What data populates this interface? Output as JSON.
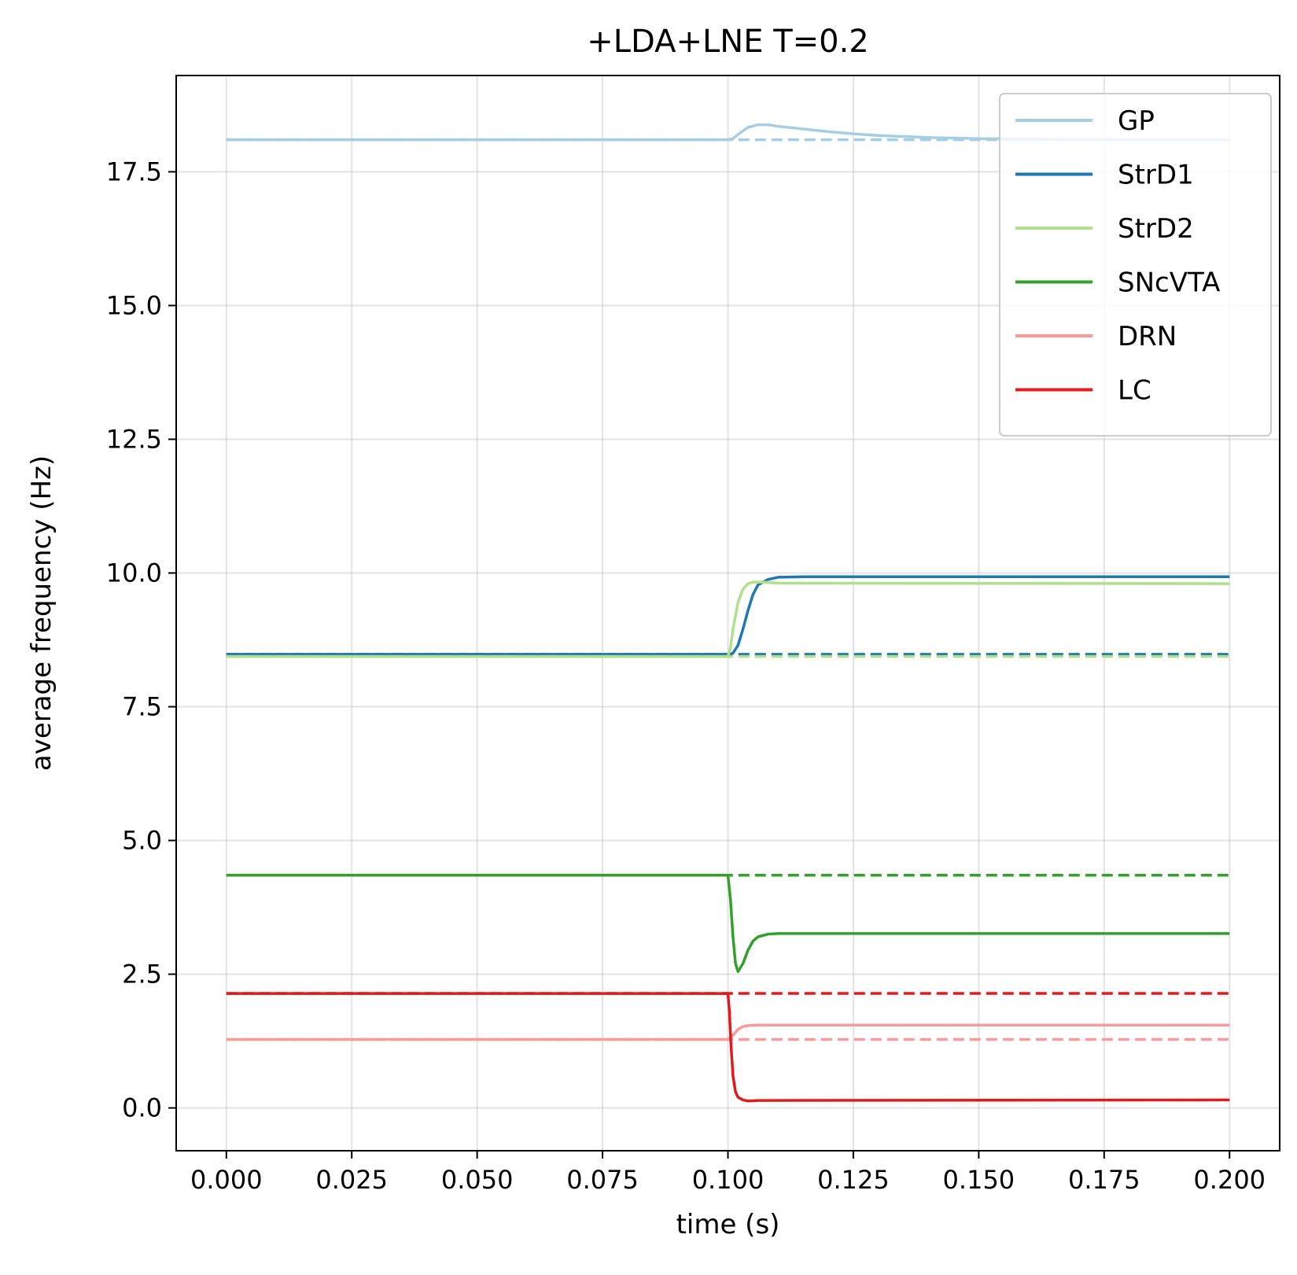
{
  "chart_data": {
    "type": "line",
    "title": "+LDA+LNE T=0.2",
    "xlabel": "time (s)",
    "ylabel": "average frequency (Hz)",
    "xlim": [
      -0.01,
      0.21
    ],
    "ylim": [
      -0.8,
      19.3
    ],
    "xticks": [
      0.0,
      0.025,
      0.05,
      0.075,
      0.1,
      0.125,
      0.15,
      0.175,
      0.2
    ],
    "xtick_labels": [
      "0.000",
      "0.025",
      "0.050",
      "0.075",
      "0.100",
      "0.125",
      "0.150",
      "0.175",
      "0.200"
    ],
    "yticks": [
      0.0,
      2.5,
      5.0,
      7.5,
      10.0,
      12.5,
      15.0,
      17.5
    ],
    "ytick_labels": [
      "0.0",
      "2.5",
      "5.0",
      "7.5",
      "10.0",
      "12.5",
      "15.0",
      "17.5"
    ],
    "grid": true,
    "legend_position": "top-right",
    "series": [
      {
        "name": "GP",
        "color": "#a6cee3",
        "x": [
          0,
          0.1,
          0.101,
          0.102,
          0.104,
          0.106,
          0.108,
          0.11,
          0.115,
          0.12,
          0.125,
          0.13,
          0.14,
          0.15,
          0.16,
          0.18,
          0.2
        ],
        "y": [
          18.1,
          18.1,
          18.12,
          18.2,
          18.33,
          18.38,
          18.38,
          18.35,
          18.3,
          18.25,
          18.21,
          18.18,
          18.14,
          18.12,
          18.11,
          18.1,
          18.1
        ],
        "baseline": 18.1
      },
      {
        "name": "StrD1",
        "color": "#1f78b4",
        "x": [
          0,
          0.1,
          0.101,
          0.102,
          0.103,
          0.104,
          0.105,
          0.106,
          0.108,
          0.11,
          0.115,
          0.2
        ],
        "y": [
          8.48,
          8.48,
          8.5,
          8.65,
          8.95,
          9.3,
          9.6,
          9.78,
          9.88,
          9.92,
          9.93,
          9.93
        ],
        "baseline": 8.48
      },
      {
        "name": "StrD2",
        "color": "#b2df8a",
        "x": [
          0,
          0.1,
          0.1005,
          0.101,
          0.102,
          0.103,
          0.104,
          0.105,
          0.107,
          0.11,
          0.2
        ],
        "y": [
          8.44,
          8.44,
          8.6,
          8.95,
          9.45,
          9.7,
          9.8,
          9.83,
          9.83,
          9.81,
          9.8
        ],
        "baseline": 8.44
      },
      {
        "name": "SNcVTA",
        "color": "#33a02c",
        "x": [
          0,
          0.1,
          0.1005,
          0.101,
          0.1015,
          0.102,
          0.103,
          0.104,
          0.105,
          0.106,
          0.108,
          0.11,
          0.2
        ],
        "y": [
          4.35,
          4.35,
          3.9,
          3.2,
          2.7,
          2.55,
          2.7,
          2.95,
          3.12,
          3.2,
          3.25,
          3.26,
          3.26
        ],
        "baseline": 4.35
      },
      {
        "name": "DRN",
        "color": "#fb9a99",
        "x": [
          0,
          0.1,
          0.101,
          0.102,
          0.103,
          0.104,
          0.106,
          0.2
        ],
        "y": [
          1.28,
          1.28,
          1.36,
          1.47,
          1.52,
          1.54,
          1.55,
          1.55
        ],
        "baseline": 1.28
      },
      {
        "name": "LC",
        "color": "#e31a1c",
        "x": [
          0,
          0.1,
          0.1003,
          0.1006,
          0.101,
          0.1015,
          0.102,
          0.103,
          0.104,
          0.106,
          0.2
        ],
        "y": [
          2.14,
          2.14,
          1.8,
          1.2,
          0.6,
          0.3,
          0.2,
          0.15,
          0.13,
          0.14,
          0.15
        ],
        "baseline": 2.14
      }
    ]
  }
}
